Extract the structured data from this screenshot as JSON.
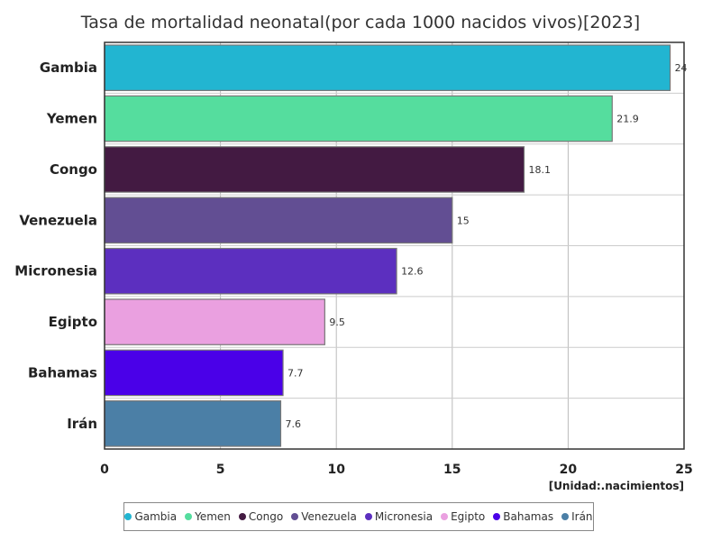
{
  "chart_data": {
    "type": "bar",
    "orientation": "horizontal",
    "title": "Tasa de mortalidad neonatal(por cada 1000 nacidos vivos)[2023]",
    "unit_label": "[Unidad:.nacimientos]",
    "categories": [
      "Gambia",
      "Yemen",
      "Congo",
      "Venezuela",
      "Micronesia",
      "Egipto",
      "Bahamas",
      "Irán"
    ],
    "values": [
      24.4,
      21.9,
      18.1,
      15,
      12.6,
      9.5,
      7.7,
      7.6
    ],
    "value_labels": [
      "24",
      "21.9",
      "18.1",
      "15",
      "12.6",
      "9.5",
      "7.7",
      "7.6"
    ],
    "colors": [
      "#22b5d1",
      "#55dd9e",
      "#431a42",
      "#624e93",
      "#5c2fbf",
      "#eaa0e0",
      "#4a00e8",
      "#4b7fa6"
    ],
    "xlim": [
      0,
      25
    ],
    "xticks": [
      0,
      5,
      10,
      15,
      20,
      25
    ],
    "grid": true,
    "legend_position": "bottom"
  }
}
